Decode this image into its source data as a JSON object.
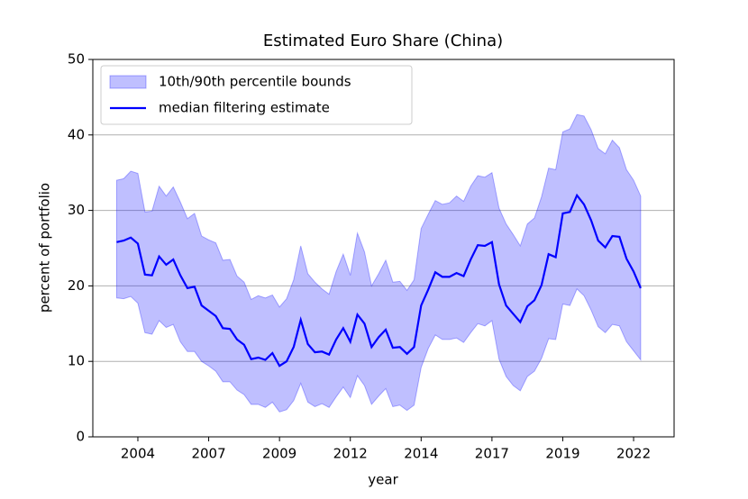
{
  "chart_data": {
    "type": "line",
    "title": "Estimated Euro Share (China)",
    "x_label": "year",
    "y_label": "percent of portfolio",
    "x": [
      2003.25,
      2003.5,
      2003.75,
      2004,
      2004.25,
      2004.5,
      2004.75,
      2005,
      2005.25,
      2005.5,
      2005.75,
      2006,
      2006.25,
      2006.5,
      2006.75,
      2007,
      2007.25,
      2007.5,
      2007.75,
      2008,
      2008.25,
      2008.5,
      2008.75,
      2009,
      2009.25,
      2009.5,
      2009.75,
      2010,
      2010.25,
      2010.5,
      2010.75,
      2011,
      2011.25,
      2011.5,
      2011.75,
      2012,
      2012.25,
      2012.5,
      2012.75,
      2013,
      2013.25,
      2013.5,
      2013.75,
      2014,
      2014.25,
      2014.5,
      2014.75,
      2015,
      2015.25,
      2015.5,
      2015.75,
      2016,
      2016.25,
      2016.5,
      2016.75,
      2017,
      2017.25,
      2017.5,
      2017.75,
      2018,
      2018.25,
      2018.5,
      2018.75,
      2019,
      2019.25,
      2019.5,
      2019.75,
      2020,
      2020.25,
      2020.5,
      2020.75,
      2021,
      2021.25,
      2021.5,
      2021.75
    ],
    "series": [
      {
        "name": "10th/90th percentile bounds",
        "kind": "band",
        "color": "#0000ff",
        "upper": [
          34.0,
          34.2,
          35.2,
          34.9,
          29.8,
          29.9,
          33.2,
          31.9,
          33.1,
          31.1,
          28.9,
          29.6,
          26.6,
          26.1,
          25.7,
          23.4,
          23.5,
          21.3,
          20.5,
          18.2,
          18.7,
          18.4,
          18.8,
          17.2,
          18.3,
          20.8,
          25.3,
          21.6,
          20.5,
          19.6,
          18.9,
          21.9,
          24.2,
          21.4,
          27.0,
          24.5,
          20.0,
          21.6,
          23.4,
          20.5,
          20.6,
          19.4,
          20.8,
          27.6,
          29.5,
          31.3,
          30.8,
          31.0,
          31.9,
          31.2,
          33.2,
          34.6,
          34.4,
          35.0,
          30.3,
          28.2,
          26.8,
          25.3,
          28.2,
          29.0,
          31.8,
          35.6,
          35.4,
          40.4,
          40.8,
          42.7,
          42.5,
          40.7,
          38.2,
          37.5,
          39.3,
          38.3,
          35.4,
          34.0,
          31.9
        ],
        "lower": [
          18.4,
          18.3,
          18.6,
          17.7,
          13.8,
          13.6,
          15.4,
          14.5,
          14.9,
          12.6,
          11.3,
          11.3,
          10.0,
          9.4,
          8.7,
          7.3,
          7.3,
          6.2,
          5.6,
          4.3,
          4.3,
          3.9,
          4.6,
          3.3,
          3.6,
          4.8,
          7.1,
          4.6,
          4.0,
          4.4,
          3.9,
          5.3,
          6.6,
          5.2,
          8.1,
          6.8,
          4.3,
          5.4,
          6.4,
          4.0,
          4.2,
          3.5,
          4.2,
          9.2,
          11.7,
          13.5,
          12.9,
          12.9,
          13.1,
          12.5,
          13.8,
          15.0,
          14.7,
          15.4,
          10.3,
          8.0,
          6.8,
          6.1,
          8.0,
          8.7,
          10.4,
          13.0,
          12.9,
          17.6,
          17.4,
          19.6,
          18.7,
          16.8,
          14.6,
          13.8,
          14.9,
          14.7,
          12.6,
          11.4,
          10.2
        ]
      },
      {
        "name": "median filtering estimate",
        "kind": "line",
        "color": "#0000ff",
        "values": [
          25.8,
          26.0,
          26.4,
          25.6,
          21.5,
          21.4,
          23.9,
          22.8,
          23.5,
          21.4,
          19.7,
          19.9,
          17.4,
          16.7,
          16.0,
          14.4,
          14.3,
          12.9,
          12.2,
          10.3,
          10.5,
          10.2,
          11.1,
          9.4,
          10.0,
          11.9,
          15.5,
          12.3,
          11.2,
          11.3,
          10.9,
          12.9,
          14.4,
          12.6,
          16.2,
          15.0,
          11.9,
          13.2,
          14.2,
          11.8,
          11.9,
          11.0,
          11.9,
          17.4,
          19.5,
          21.8,
          21.2,
          21.2,
          21.7,
          21.3,
          23.5,
          25.4,
          25.3,
          25.8,
          20.2,
          17.4,
          16.3,
          15.2,
          17.3,
          18.1,
          20.1,
          24.2,
          23.8,
          29.6,
          29.8,
          32.0,
          30.8,
          28.7,
          26.0,
          25.1,
          26.6,
          26.5,
          23.6,
          21.9,
          19.7
        ]
      }
    ],
    "xlim": [
      2002.41,
      2022.93
    ],
    "ylim": [
      0,
      50
    ],
    "xticks": [
      2004,
      {
        "value": 2006.5,
        "label": "2007"
      },
      2009,
      {
        "value": 2011.5,
        "label": "2012"
      },
      2014,
      {
        "value": 2016.5,
        "label": "2017"
      },
      2019,
      {
        "value": 2021.5,
        "label": "2022"
      }
    ],
    "yticks": [
      0,
      10,
      20,
      30,
      40,
      50
    ],
    "grid": "y",
    "legend": "upper left"
  }
}
